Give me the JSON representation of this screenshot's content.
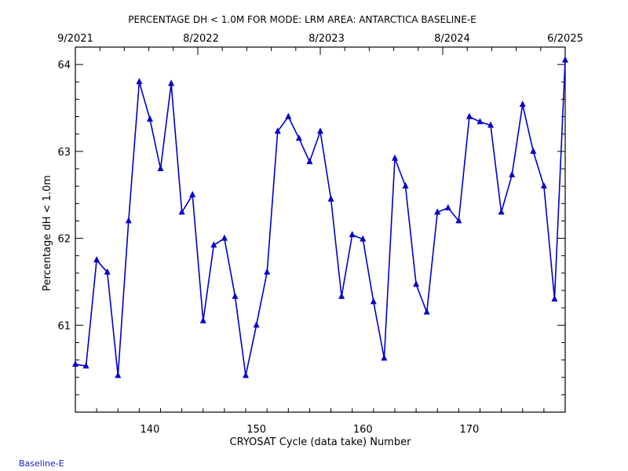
{
  "chart_data": {
    "type": "line",
    "title": "PERCENTAGE DH < 1.0M FOR MODE: LRM AREA: ANTARCTICA BASELINE-E",
    "xlabel": "CRYOSAT Cycle (data take) Number",
    "ylabel": "Percentage dH < 1.0m",
    "xlim": [
      133,
      179
    ],
    "ylim": [
      60,
      64.2
    ],
    "x_ticks": [
      140,
      150,
      160,
      170
    ],
    "y_ticks": [
      61,
      62,
      63,
      64
    ],
    "top_axis_labels": [
      "9/2021",
      "8/2022",
      "8/2023",
      "8/2024",
      "6/2025"
    ],
    "grid": false,
    "line_color": "#0000cc",
    "marker": "triangle",
    "series": [
      {
        "x": [
          133,
          134,
          135,
          136,
          137,
          138,
          139,
          140,
          141,
          142,
          143,
          144,
          145,
          146,
          147,
          148,
          149,
          150,
          151,
          152,
          153,
          154,
          155,
          156,
          157,
          158,
          159,
          160,
          161,
          162,
          163,
          164,
          165,
          166,
          167,
          168,
          169,
          170,
          171,
          172,
          173,
          174,
          175,
          176,
          177,
          178,
          179
        ],
        "y": [
          60.55,
          60.53,
          61.75,
          61.61,
          60.42,
          62.2,
          63.8,
          63.37,
          62.8,
          63.78,
          62.3,
          62.5,
          61.05,
          61.92,
          62.0,
          61.33,
          60.42,
          61.0,
          61.61,
          63.23,
          63.4,
          63.15,
          62.88,
          63.23,
          62.45,
          61.33,
          62.04,
          61.99,
          61.27,
          60.62,
          62.92,
          62.6,
          61.47,
          61.15,
          62.3,
          62.35,
          62.2,
          63.4,
          63.34,
          63.3,
          62.3,
          62.73,
          63.54,
          63.0,
          62.6,
          61.3,
          64.05
        ]
      }
    ]
  },
  "footer": "Baseline-E"
}
